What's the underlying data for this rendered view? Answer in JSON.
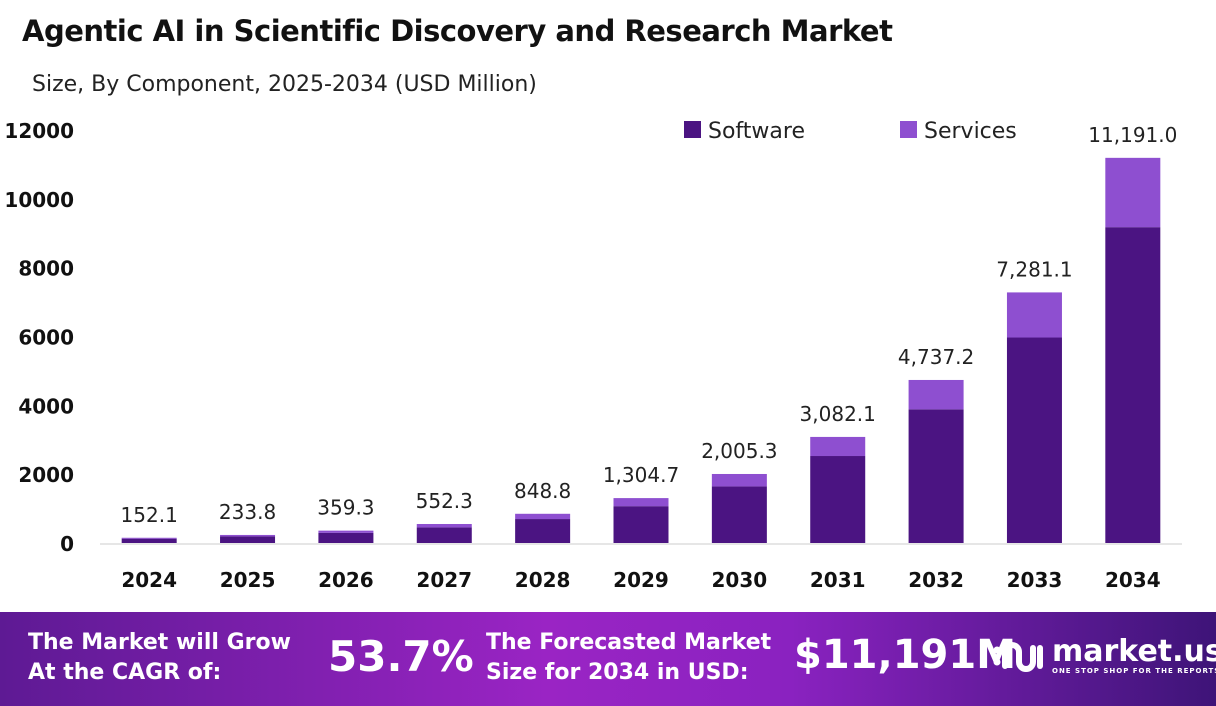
{
  "chart_data": {
    "type": "bar",
    "stacked": true,
    "title": "Agentic AI in Scientific Discovery and Research Market",
    "subtitle": "Size, By Component, 2025-2034 (USD Million)",
    "categories": [
      "2024",
      "2025",
      "2026",
      "2027",
      "2028",
      "2029",
      "2030",
      "2031",
      "2032",
      "2033",
      "2034"
    ],
    "series": [
      {
        "name": "Software",
        "color": "#4b1482",
        "values": [
          124.7,
          191.7,
          294.6,
          452.9,
          696.0,
          1069.9,
          1644.3,
          2527.3,
          3884.5,
          5970.5,
          9176.6
        ]
      },
      {
        "name": "Services",
        "color": "#8e4fd0",
        "values": [
          27.4,
          42.1,
          64.7,
          99.4,
          152.8,
          234.8,
          361.0,
          554.8,
          852.7,
          1310.6,
          2014.4
        ]
      }
    ],
    "totals": [
      152.1,
      233.8,
      359.3,
      552.3,
      848.8,
      1304.7,
      2005.3,
      3082.1,
      4737.2,
      7281.1,
      11191.0
    ],
    "total_labels": [
      "152.1",
      "233.8",
      "359.3",
      "552.3",
      "848.8",
      "1,304.7",
      "2,005.3",
      "3,082.1",
      "4,737.2",
      "7,281.1",
      "11,191.0"
    ],
    "yticks": [
      "0",
      "2000",
      "4000",
      "6000",
      "8000",
      "10000",
      "12000"
    ],
    "ylim": [
      0,
      12000
    ],
    "grid": false,
    "legend": "top-right"
  },
  "footer": {
    "cagr_label_1": "The Market will Grow",
    "cagr_label_2": "At the CAGR of:",
    "cagr_value": "53.7%",
    "size_label_1": "The Forecasted Market",
    "size_label_2": "Size for 2034 in USD:",
    "size_value": "$11,191M",
    "logo_name": "market.us",
    "logo_tagline": "ONE STOP SHOP FOR THE REPORTS"
  }
}
